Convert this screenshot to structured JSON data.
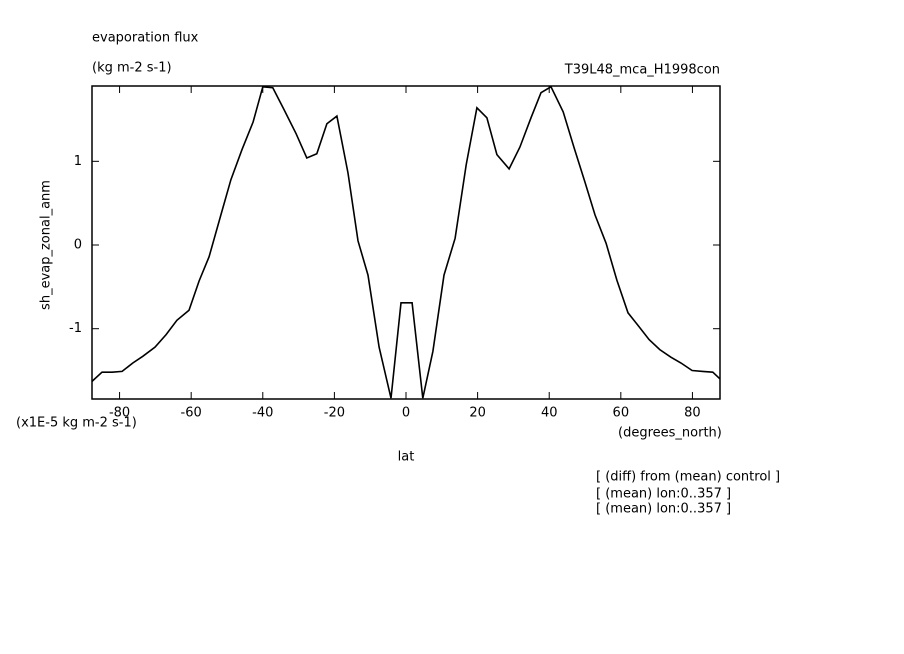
{
  "chart_data": {
    "type": "line",
    "title": "evaporation flux",
    "subtitle": "(kg m-2 s-1)",
    "experiment": "T39L48_mca_H1998con",
    "y_label": "sh_evap_zonal_anm",
    "y_units": "(x1E-5 kg m-2 s-1)",
    "x_label": "lat",
    "x_units": "(degrees_north)",
    "notes": [
      "[ (diff) from (mean) control ]",
      "[ (mean) lon:0..357 ]",
      "[ (mean) lon:0..357 ]"
    ],
    "color": "#000000",
    "x": [
      -87.7,
      -84.9,
      -82.1,
      -79.3,
      -76.3,
      -73.5,
      -70.1,
      -67.0,
      -64.0,
      -60.6,
      -57.8,
      -55.0,
      -51.7,
      -48.9,
      -45.8,
      -42.7,
      -40.0,
      -37.2,
      -34.1,
      -30.7,
      -27.7,
      -24.9,
      -22.1,
      -19.3,
      -16.2,
      -13.4,
      -10.6,
      -7.5,
      -4.2,
      -1.4,
      1.7,
      4.7,
      7.5,
      10.6,
      13.7,
      16.8,
      19.8,
      22.6,
      25.4,
      28.8,
      31.8,
      34.9,
      37.7,
      40.5,
      43.9,
      46.9,
      50.0,
      52.8,
      55.9,
      58.9,
      62.0,
      64.8,
      67.9,
      70.9,
      74.0,
      76.8,
      79.9,
      82.9,
      85.7,
      87.7
    ],
    "values": [
      -1.63,
      -1.52,
      -1.52,
      -1.51,
      -1.41,
      -1.33,
      -1.22,
      -1.07,
      -0.9,
      -0.78,
      -0.43,
      -0.14,
      0.36,
      0.78,
      1.14,
      1.47,
      1.89,
      1.88,
      1.62,
      1.33,
      1.04,
      1.09,
      1.45,
      1.54,
      0.86,
      0.05,
      -0.36,
      -1.22,
      -1.83,
      -0.69,
      -0.69,
      -1.83,
      -1.27,
      -0.36,
      0.08,
      0.96,
      1.64,
      1.52,
      1.08,
      0.91,
      1.17,
      1.52,
      1.82,
      1.89,
      1.59,
      1.17,
      0.75,
      0.36,
      0.02,
      -0.42,
      -0.81,
      -0.96,
      -1.13,
      -1.25,
      -1.34,
      -1.41,
      -1.5,
      -1.51,
      -1.52,
      -1.6
    ],
    "xlim": [
      -87.7,
      87.7
    ],
    "ylim": [
      -1.84,
      1.9
    ],
    "xticks": [
      -80,
      -60,
      -40,
      -20,
      0,
      20,
      40,
      60,
      80
    ],
    "yticks": [
      -1,
      0,
      1
    ]
  }
}
